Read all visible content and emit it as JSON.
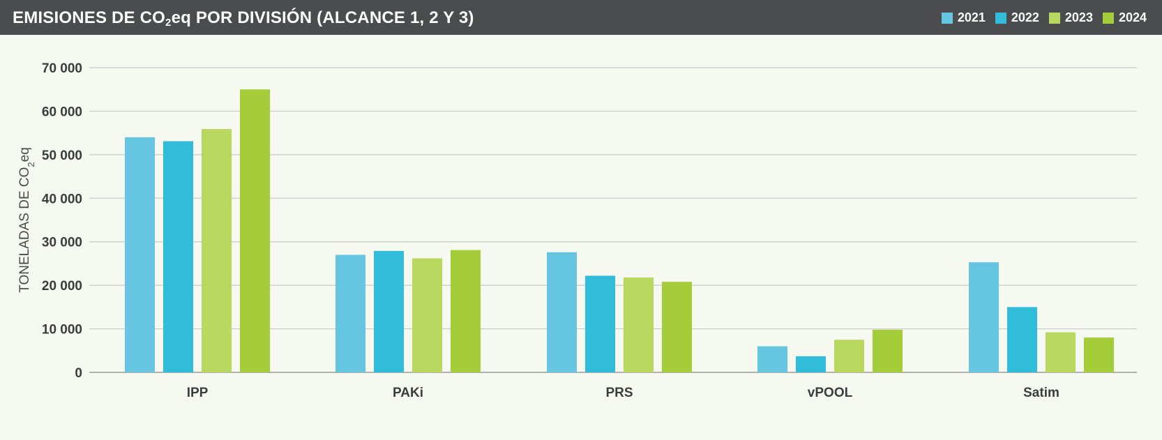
{
  "header": {
    "title_main": "EMISIONES DE CO",
    "title_sub": "2",
    "title_rest": "eq POR DIVISIÓN (ALCANCE 1, 2 Y 3)"
  },
  "colors": {
    "header_bg": "#4b4c4e",
    "background": "#f6f9f0",
    "gridline": "#c9c9c9"
  },
  "chart_data": {
    "type": "bar",
    "title": "EMISIONES DE CO2eq POR DIVISIÓN (ALCANCE 1, 2 Y 3)",
    "ylabel_main": "TONELADAS DE CO",
    "ylabel_sub": "2",
    "ylabel_rest": "eq",
    "xlabel": "",
    "ylim": [
      0,
      70000
    ],
    "yticks": [
      0,
      10000,
      20000,
      30000,
      40000,
      50000,
      60000,
      70000
    ],
    "ytick_labels": [
      "0",
      "10 000",
      "20 000",
      "30 000",
      "40 000",
      "50 000",
      "60 000",
      "70 000"
    ],
    "grid": true,
    "legend_position": "top-right",
    "categories": [
      "IPP",
      "PAKi",
      "PRS",
      "vPOOL",
      "Satim"
    ],
    "series": [
      {
        "name": "2021",
        "color": "#66c6e1",
        "values": [
          54000,
          27000,
          27600,
          6000,
          25300
        ]
      },
      {
        "name": "2022",
        "color": "#31bcd9",
        "values": [
          53100,
          27900,
          22200,
          3700,
          15000
        ]
      },
      {
        "name": "2023",
        "color": "#b9d860",
        "values": [
          55900,
          26200,
          21800,
          7500,
          9200
        ]
      },
      {
        "name": "2024",
        "color": "#a5cd3a",
        "values": [
          65000,
          28100,
          20800,
          9800,
          8000
        ]
      }
    ]
  }
}
